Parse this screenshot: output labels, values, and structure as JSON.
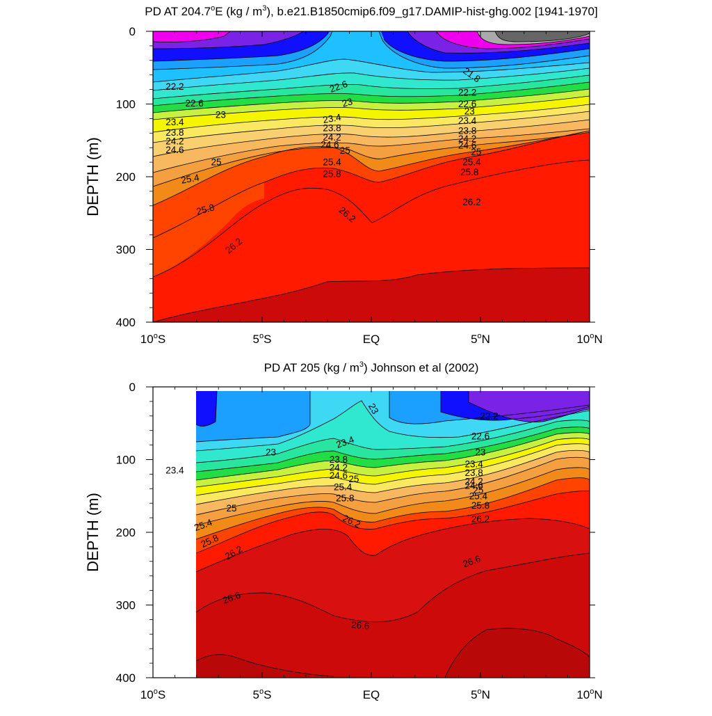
{
  "colors": {
    "magenta": "#ee00ee",
    "violet": "#7a22e6",
    "blue": "#1010ff",
    "sky": "#1ca0ff",
    "cyan": "#3ed8f5",
    "green": "#22dd44",
    "yellow": "#f5f500",
    "orange": "#f0a030",
    "red": "#ff1a00",
    "darkred": "#cc0a0a",
    "grey": "#666666",
    "lightgrey": "#aaaaaa"
  },
  "chart_data": [
    {
      "type": "contour",
      "title": "PD AT 204.7°E (kg / m³), b.e21.B1850cmip6.f09_g17.DAMIP-hist-ghg.002 [1941-1970]",
      "title_parts": {
        "main": "PD AT 204.7",
        "deg": "o",
        "unit_a": "E (kg / m",
        "sup": "3",
        "rest": "), b.e21.B1850cmip6.f09_g17.DAMIP-hist-ghg.002 [1941-1970]"
      },
      "ylabel": "DEPTH (m)",
      "xlim": [
        -10,
        10
      ],
      "ylim": [
        400,
        0
      ],
      "y_reversed": true,
      "xticks": [
        {
          "value": -10,
          "num": "10",
          "hemi": "S"
        },
        {
          "value": -5,
          "num": "5",
          "hemi": "S"
        },
        {
          "value": 0,
          "num": "EQ",
          "hemi": ""
        },
        {
          "value": 5,
          "num": "5",
          "hemi": "N"
        },
        {
          "value": 10,
          "num": "10",
          "hemi": "N"
        }
      ],
      "yticks": [
        0,
        100,
        200,
        300,
        400
      ],
      "contour_levels": [
        21.8,
        22.2,
        22.6,
        23,
        23.4,
        23.8,
        24.2,
        24.6,
        25,
        25.4,
        25.8,
        26.2
      ],
      "contour_labels": [
        {
          "text": "21.8",
          "x": 4.6,
          "y": 60,
          "rot": 35
        },
        {
          "text": "22.2",
          "x": -9.0,
          "y": 76,
          "rot": 0
        },
        {
          "text": "22.6",
          "x": -1.5,
          "y": 76,
          "rot": -20
        },
        {
          "text": "22.2",
          "x": 4.4,
          "y": 84,
          "rot": 0
        },
        {
          "text": "22.6",
          "x": -8.1,
          "y": 99,
          "rot": 0
        },
        {
          "text": "22.6",
          "x": 4.4,
          "y": 100,
          "rot": 0
        },
        {
          "text": "23",
          "x": -6.9,
          "y": 115,
          "rot": 0
        },
        {
          "text": "23",
          "x": -1.1,
          "y": 98,
          "rot": -15
        },
        {
          "text": "23",
          "x": 4.5,
          "y": 110,
          "rot": 0
        },
        {
          "text": "23.4",
          "x": -9.0,
          "y": 125,
          "rot": 0
        },
        {
          "text": "23.4",
          "x": -1.8,
          "y": 120,
          "rot": -10
        },
        {
          "text": "23.4",
          "x": 4.4,
          "y": 123,
          "rot": 0
        },
        {
          "text": "23.8",
          "x": -9.0,
          "y": 139,
          "rot": 0
        },
        {
          "text": "23.8",
          "x": -1.8,
          "y": 133,
          "rot": 0
        },
        {
          "text": "23.8",
          "x": 4.4,
          "y": 137,
          "rot": 0
        },
        {
          "text": "24.2",
          "x": -9.0,
          "y": 151,
          "rot": 0
        },
        {
          "text": "24.2",
          "x": -1.8,
          "y": 146,
          "rot": 0
        },
        {
          "text": "24.2",
          "x": 4.4,
          "y": 148,
          "rot": 0
        },
        {
          "text": "24.6",
          "x": -9.0,
          "y": 163,
          "rot": 0
        },
        {
          "text": "24.6",
          "x": -1.9,
          "y": 156,
          "rot": 0
        },
        {
          "text": "24.6",
          "x": 4.4,
          "y": 157,
          "rot": 0
        },
        {
          "text": "25",
          "x": -7.1,
          "y": 180,
          "rot": 0
        },
        {
          "text": "25",
          "x": -1.2,
          "y": 164,
          "rot": 0
        },
        {
          "text": "25",
          "x": 4.8,
          "y": 166,
          "rot": 0
        },
        {
          "text": "25.4",
          "x": -8.3,
          "y": 203,
          "rot": -10
        },
        {
          "text": "25.4",
          "x": -1.8,
          "y": 180,
          "rot": 0
        },
        {
          "text": "25.4",
          "x": 4.6,
          "y": 180,
          "rot": 0
        },
        {
          "text": "25.8",
          "x": -1.8,
          "y": 196,
          "rot": 0
        },
        {
          "text": "25.8",
          "x": 4.5,
          "y": 194,
          "rot": 0
        },
        {
          "text": "25.8",
          "x": -7.6,
          "y": 245,
          "rot": -15
        },
        {
          "text": "26.2",
          "x": 4.6,
          "y": 235,
          "rot": 0
        },
        {
          "text": "26.2",
          "x": -1.1,
          "y": 252,
          "rot": 40
        },
        {
          "text": "26.2",
          "x": -6.3,
          "y": 295,
          "rot": -40
        }
      ]
    },
    {
      "type": "contour",
      "title": "PD AT 205 (kg / m³) Johnson et al (2002)",
      "title_parts": {
        "main": "PD AT 205 (kg / m",
        "sup": "3",
        "rest": ") Johnson et al (2002)"
      },
      "ylabel": "DEPTH (m)",
      "xlim": [
        -10,
        10
      ],
      "ylim": [
        400,
        0
      ],
      "y_reversed": true,
      "data_extent_x": [
        -8,
        10
      ],
      "xticks": [
        {
          "value": -10,
          "num": "10",
          "hemi": "S"
        },
        {
          "value": -5,
          "num": "5",
          "hemi": "S"
        },
        {
          "value": 0,
          "num": "EQ",
          "hemi": ""
        },
        {
          "value": 5,
          "num": "5",
          "hemi": "N"
        },
        {
          "value": 10,
          "num": "10",
          "hemi": "N"
        }
      ],
      "yticks": [
        0,
        100,
        200,
        300,
        400
      ],
      "contour_levels": [
        22.2,
        22.6,
        23,
        23.4,
        23.8,
        24.2,
        24.6,
        25,
        25.4,
        25.8,
        26.2,
        26.6
      ],
      "contour_labels": [
        {
          "text": "23",
          "x": 0.1,
          "y": 30,
          "rot": 60
        },
        {
          "text": "22.2",
          "x": 5.4,
          "y": 40,
          "rot": 0
        },
        {
          "text": "22.6",
          "x": 5.0,
          "y": 68,
          "rot": 0
        },
        {
          "text": "23",
          "x": 5.0,
          "y": 90,
          "rot": 0
        },
        {
          "text": "23",
          "x": -4.6,
          "y": 90,
          "rot": 0
        },
        {
          "text": "23.4",
          "x": -1.2,
          "y": 76,
          "rot": -20
        },
        {
          "text": "23.4",
          "x": -9.0,
          "y": 115,
          "rot": 0
        },
        {
          "text": "23.4",
          "x": 4.7,
          "y": 106,
          "rot": 0
        },
        {
          "text": "23.8",
          "x": -1.5,
          "y": 100,
          "rot": 0
        },
        {
          "text": "23.8",
          "x": 4.7,
          "y": 118,
          "rot": 0
        },
        {
          "text": "24.2",
          "x": -1.5,
          "y": 111,
          "rot": 0
        },
        {
          "text": "24.2",
          "x": 4.7,
          "y": 130,
          "rot": 0
        },
        {
          "text": "24.6",
          "x": -1.5,
          "y": 122,
          "rot": 0
        },
        {
          "text": "24.6",
          "x": 4.7,
          "y": 136,
          "rot": 0
        },
        {
          "text": "25",
          "x": -0.8,
          "y": 127,
          "rot": 0
        },
        {
          "text": "25",
          "x": 4.9,
          "y": 142,
          "rot": 0
        },
        {
          "text": "25",
          "x": -6.4,
          "y": 167,
          "rot": 0
        },
        {
          "text": "25.4",
          "x": -1.3,
          "y": 138,
          "rot": 0
        },
        {
          "text": "25.4",
          "x": 4.9,
          "y": 150,
          "rot": 0
        },
        {
          "text": "25.4",
          "x": -7.7,
          "y": 190,
          "rot": -20
        },
        {
          "text": "25.8",
          "x": -1.2,
          "y": 153,
          "rot": 0
        },
        {
          "text": "25.8",
          "x": 5.0,
          "y": 163,
          "rot": 0
        },
        {
          "text": "25.8",
          "x": -7.4,
          "y": 212,
          "rot": -25
        },
        {
          "text": "26.2",
          "x": -0.9,
          "y": 185,
          "rot": 25
        },
        {
          "text": "26.2",
          "x": 5.0,
          "y": 182,
          "rot": 0
        },
        {
          "text": "26.2",
          "x": -6.3,
          "y": 228,
          "rot": -30
        },
        {
          "text": "26.6",
          "x": 4.6,
          "y": 240,
          "rot": -20
        },
        {
          "text": "26.6",
          "x": -6.4,
          "y": 290,
          "rot": -20
        },
        {
          "text": "26.6",
          "x": -0.5,
          "y": 328,
          "rot": 5
        }
      ]
    }
  ]
}
